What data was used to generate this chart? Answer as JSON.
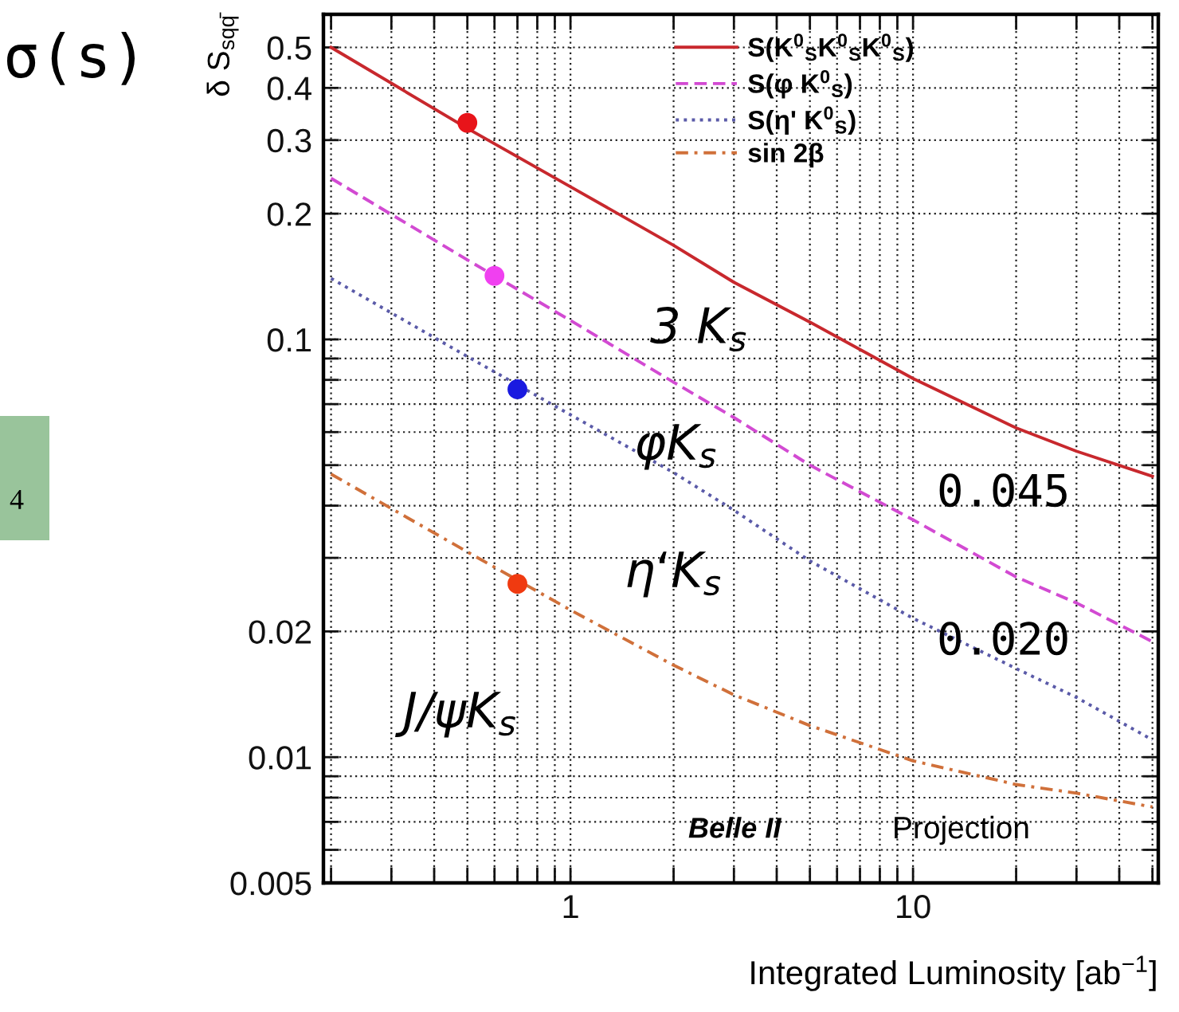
{
  "chart_data": {
    "type": "line",
    "title": "σ(s)",
    "xlabel": "Integrated Luminosity [ab$^{−1}$]",
    "ylabel": "δ S$_{sqq̄}$",
    "log": "xy",
    "xlim": [
      0.19,
      52
    ],
    "ylim": [
      0.005,
      0.6
    ],
    "xticks": [
      {
        "value": 0.2,
        "label": null
      },
      {
        "value": 0.3,
        "label": null
      },
      {
        "value": 0.4,
        "label": null
      },
      {
        "value": 0.5,
        "label": null
      },
      {
        "value": 0.6,
        "label": null
      },
      {
        "value": 0.7,
        "label": null
      },
      {
        "value": 0.8,
        "label": null
      },
      {
        "value": 0.9,
        "label": null
      },
      1,
      {
        "value": 2,
        "label": null
      },
      {
        "value": 3,
        "label": null
      },
      {
        "value": 4,
        "label": null
      },
      {
        "value": 5,
        "label": null
      },
      {
        "value": 6,
        "label": null
      },
      {
        "value": 7,
        "label": null
      },
      {
        "value": 8,
        "label": null
      },
      {
        "value": 9,
        "label": null
      },
      10,
      {
        "value": 20,
        "label": null
      },
      {
        "value": 30,
        "label": null
      },
      {
        "value": 40,
        "label": null
      },
      {
        "value": 50,
        "label": null
      }
    ],
    "yticks": [
      0.005,
      {
        "value": 0.006,
        "label": null
      },
      {
        "value": 0.007,
        "label": null
      },
      {
        "value": 0.008,
        "label": null
      },
      {
        "value": 0.009,
        "label": null
      },
      0.01,
      0.02,
      {
        "value": 0.03,
        "label": null
      },
      {
        "value": 0.04,
        "label": null
      },
      {
        "value": 0.05,
        "label": null
      },
      {
        "value": 0.06,
        "label": null
      },
      {
        "value": 0.07,
        "label": null
      },
      {
        "value": 0.08,
        "label": null
      },
      {
        "value": 0.09,
        "label": null
      },
      0.1,
      0.2,
      0.3,
      0.4,
      0.5
    ],
    "grid": true,
    "legend": "top",
    "x": [
      0.2,
      0.5,
      1,
      2,
      3,
      5,
      10,
      20,
      30,
      50
    ],
    "series": [
      {
        "name": "S(K$^{0}$$_{S}$K$^{0}$$_{S}$K$^{0}$$_{S}$)",
        "color": "#c8282d",
        "line_style": "solid",
        "values": [
          0.5,
          0.32,
          0.232,
          0.168,
          0.137,
          0.11,
          0.0806,
          0.0614,
          0.054,
          0.047
        ]
      },
      {
        "name": "S(φ K$^{0}$$_{S}$)",
        "color": "#d24ad2",
        "line_style": "dashed",
        "values": [
          0.243,
          0.155,
          0.111,
          0.079,
          0.065,
          0.05,
          0.037,
          0.027,
          0.0234,
          0.0189
        ]
      },
      {
        "name": "S(η' K$^{0}$$_{S}$)",
        "color": "#5a5aa8",
        "line_style": "dotted",
        "values": [
          0.14,
          0.091,
          0.066,
          0.048,
          0.039,
          0.0295,
          0.0215,
          0.0163,
          0.0139,
          0.011
        ]
      },
      {
        "name": "sin 2β",
        "color": "#d0703a",
        "line_style": "dashdot",
        "values": [
          0.0476,
          0.031,
          0.0225,
          0.0166,
          0.0141,
          0.0119,
          0.0098,
          0.0086,
          0.0082,
          0.0076
        ]
      },
      {
        "type": "scatter",
        "x": [
          0.5
        ],
        "values": [
          0.33
        ],
        "color": "#e8141a",
        "marker": "circle"
      },
      {
        "type": "scatter",
        "x": [
          0.6
        ],
        "values": [
          0.142
        ],
        "color": "#f040f0",
        "marker": "circle"
      },
      {
        "type": "scatter",
        "x": [
          0.7
        ],
        "values": [
          0.076
        ],
        "color": "#1a1ae0",
        "marker": "circle"
      },
      {
        "type": "scatter",
        "x": [
          0.7
        ],
        "values": [
          0.026
        ],
        "color": "#f03a10",
        "marker": "circle"
      }
    ],
    "annotations": [
      "4",
      "3 K$_{s}$",
      "φK$_{s}$",
      "η‘K$_{s}$",
      "J/ψK$_{s}$",
      "0.045",
      "0.020",
      "Belle II",
      "Projection"
    ]
  }
}
